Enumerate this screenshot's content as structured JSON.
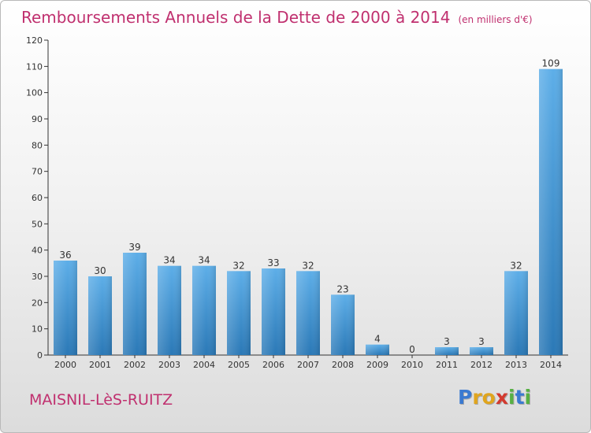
{
  "title": "Remboursements Annuels de la Dette de 2000 à 2014",
  "subtitle": "(en milliers d'€)",
  "city": "MAISNIL-LèS-RUITZ",
  "logo": {
    "text": "Proxiti",
    "letters": [
      {
        "ch": "P",
        "color": "#3a7ad1"
      },
      {
        "ch": "r",
        "color": "#e0a51e"
      },
      {
        "ch": "o",
        "color": "#e0a51e"
      },
      {
        "ch": "x",
        "color": "#d33a2f"
      },
      {
        "ch": "i",
        "color": "#57b043"
      },
      {
        "ch": "t",
        "color": "#3a7ad1"
      },
      {
        "ch": "i",
        "color": "#57b043"
      }
    ]
  },
  "colors": {
    "title": "#c0306f",
    "bar_light": "#5daee8",
    "bar_dark": "#2a78b6",
    "axis": "#333333",
    "grid": "#cccccc"
  },
  "chart_data": {
    "type": "bar",
    "categories": [
      "2000",
      "2001",
      "2002",
      "2003",
      "2004",
      "2005",
      "2006",
      "2007",
      "2008",
      "2009",
      "2010",
      "2011",
      "2012",
      "2013",
      "2014"
    ],
    "values": [
      36,
      30,
      39,
      34,
      34,
      32,
      33,
      32,
      23,
      4,
      0,
      3,
      3,
      32,
      109
    ],
    "ylim": [
      0,
      120
    ],
    "yticks": [
      0,
      10,
      20,
      30,
      40,
      50,
      60,
      70,
      80,
      90,
      100,
      110,
      120
    ],
    "xlabel": "",
    "ylabel": "",
    "grid": false,
    "data_labels": true
  }
}
